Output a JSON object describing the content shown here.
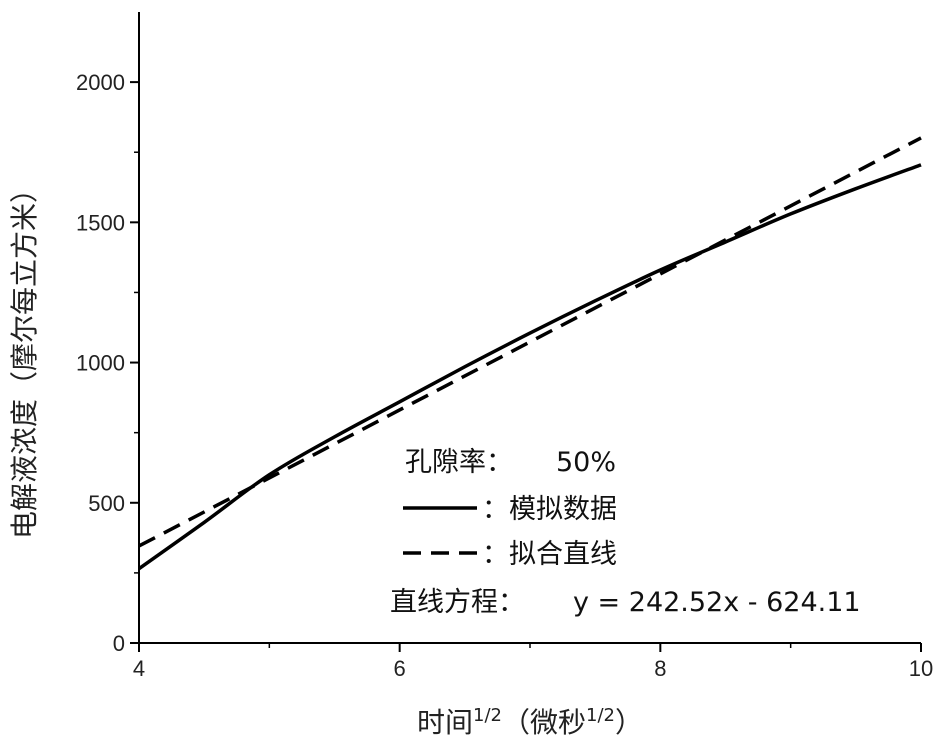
{
  "chart_data": {
    "type": "line",
    "xlabel_main": "时间",
    "xlabel_sup1": "1/2",
    "xlabel_paren": "（微秒",
    "xlabel_sup2": "1/2",
    "xlabel_close": "）",
    "ylabel": "电解液浓度（摩尔每立方米）",
    "xlim": [
      4,
      10
    ],
    "ylim": [
      0,
      2250
    ],
    "x_ticks": [
      4,
      6,
      8,
      10
    ],
    "y_ticks": [
      0,
      500,
      1000,
      1500,
      2000
    ],
    "x_tick_labels": [
      "4",
      "6",
      "8",
      "10"
    ],
    "y_tick_labels": [
      "0",
      "500",
      "1000",
      "1500",
      "2000"
    ],
    "grid": false,
    "legend": {
      "placement": "lower-right",
      "porosity_label": "孔隙率：",
      "porosity_value": "50%",
      "simulated_label": "：模拟数据",
      "fit_label": "：拟合直线",
      "equation_label": "直线方程：",
      "equation": "y = 242.52x - 624.11"
    },
    "series": [
      {
        "name": "模拟数据",
        "style": "solid",
        "x": [
          4.0,
          4.5,
          5.0,
          5.5,
          6.0,
          6.5,
          7.0,
          7.5,
          8.0,
          8.5,
          9.0,
          9.5,
          10.0
        ],
        "y": [
          265,
          430,
          600,
          735,
          860,
          985,
          1105,
          1220,
          1330,
          1430,
          1530,
          1620,
          1705
        ]
      },
      {
        "name": "拟合直线",
        "style": "dashed",
        "x": [
          4.0,
          10.0
        ],
        "y": [
          345.97,
          1801.09
        ]
      }
    ],
    "colors": {
      "line": "#000000",
      "axis": "#000000",
      "text": "#222222"
    }
  }
}
